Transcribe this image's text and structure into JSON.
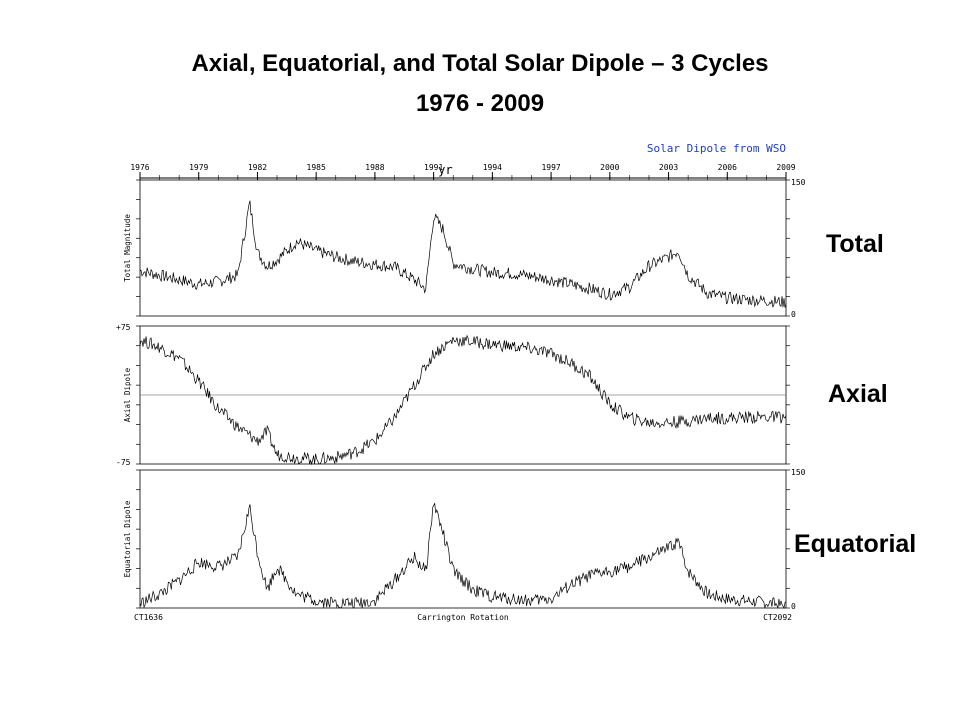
{
  "slide": {
    "title_line1": "Axial, Equatorial, and Total Solar Dipole – 3 Cycles",
    "title_line2": "1976 - 2009",
    "labels": {
      "total": "Total",
      "axial": "Axial",
      "equatorial": "Equatorial"
    }
  },
  "chart_data": {
    "type": "line",
    "title": "Solar Dipole from WSO",
    "top_axis_label": "yr",
    "top_ticks": [
      "1976",
      "1979",
      "1982",
      "1985",
      "1988",
      "1991",
      "1994",
      "1997",
      "2000",
      "2003",
      "2006",
      "2009"
    ],
    "x_range_years": [
      1976,
      2009
    ],
    "bottom_axis": {
      "label": "Carrington Rotation",
      "start": "CT1636",
      "end": "CT2092"
    },
    "color_title": "#1f3fbf",
    "panels": [
      {
        "name": "Total Magnitude",
        "ylim": [
          0,
          150
        ],
        "ytick_top": "150",
        "ytick_bottom": "0",
        "series": {
          "x": [
            1976,
            1977,
            1978,
            1979,
            1980,
            1981,
            1981.6,
            1982,
            1982.5,
            1983,
            1984,
            1985,
            1986,
            1987,
            1988,
            1989,
            1990,
            1990.6,
            1991,
            1991.5,
            1992,
            1993,
            1994,
            1995,
            1996,
            1997,
            1998,
            1999,
            2000,
            2001,
            2002,
            2003,
            2003.5,
            2004,
            2005,
            2006,
            2007,
            2008,
            2009
          ],
          "y": [
            50,
            45,
            40,
            35,
            38,
            45,
            125,
            70,
            55,
            62,
            82,
            72,
            65,
            60,
            57,
            54,
            40,
            30,
            110,
            95,
            58,
            52,
            48,
            47,
            44,
            40,
            35,
            30,
            24,
            32,
            55,
            65,
            72,
            45,
            25,
            20,
            18,
            17,
            15
          ]
        }
      },
      {
        "name": "Axial Dipole",
        "ylim": [
          -75,
          75
        ],
        "ytick_top": "+75",
        "ytick_bottom": "-75",
        "series": {
          "x": [
            1976,
            1977,
            1978,
            1979,
            1980,
            1981,
            1982,
            1982.5,
            1983,
            1984,
            1985,
            1986,
            1987,
            1988,
            1989,
            1990,
            1991,
            1992,
            1993,
            1994,
            1995,
            1996,
            1997,
            1998,
            1999,
            2000,
            2001,
            2002,
            2003,
            2004,
            2005,
            2006,
            2007,
            2008,
            2009
          ],
          "y": [
            60,
            52,
            40,
            15,
            -15,
            -35,
            -50,
            -40,
            -65,
            -68,
            -70,
            -68,
            -62,
            -50,
            -25,
            10,
            45,
            60,
            58,
            55,
            53,
            50,
            45,
            35,
            20,
            -10,
            -25,
            -30,
            -30,
            -28,
            -25,
            -25,
            -24,
            -24,
            -24
          ]
        }
      },
      {
        "name": "Equatorial Dipole",
        "ylim": [
          0,
          150
        ],
        "ytick_top": "150",
        "ytick_bottom": "0",
        "series": {
          "x": [
            1976,
            1977,
            1978,
            1979,
            1980,
            1981,
            1981.6,
            1982,
            1982.5,
            1983,
            1984,
            1985,
            1986,
            1987,
            1988,
            1989,
            1990,
            1990.6,
            1991,
            1991.5,
            1992,
            1993,
            1994,
            1995,
            1996,
            1997,
            1998,
            1999,
            2000,
            2001,
            2002,
            2003,
            2003.5,
            2004,
            2005,
            2006,
            2007,
            2008,
            2009
          ],
          "y": [
            5,
            15,
            30,
            50,
            45,
            55,
            110,
            60,
            20,
            45,
            15,
            8,
            6,
            5,
            8,
            30,
            55,
            40,
            115,
            80,
            40,
            20,
            12,
            10,
            8,
            10,
            25,
            35,
            40,
            45,
            55,
            65,
            72,
            40,
            15,
            10,
            8,
            6,
            2
          ]
        }
      }
    ]
  }
}
